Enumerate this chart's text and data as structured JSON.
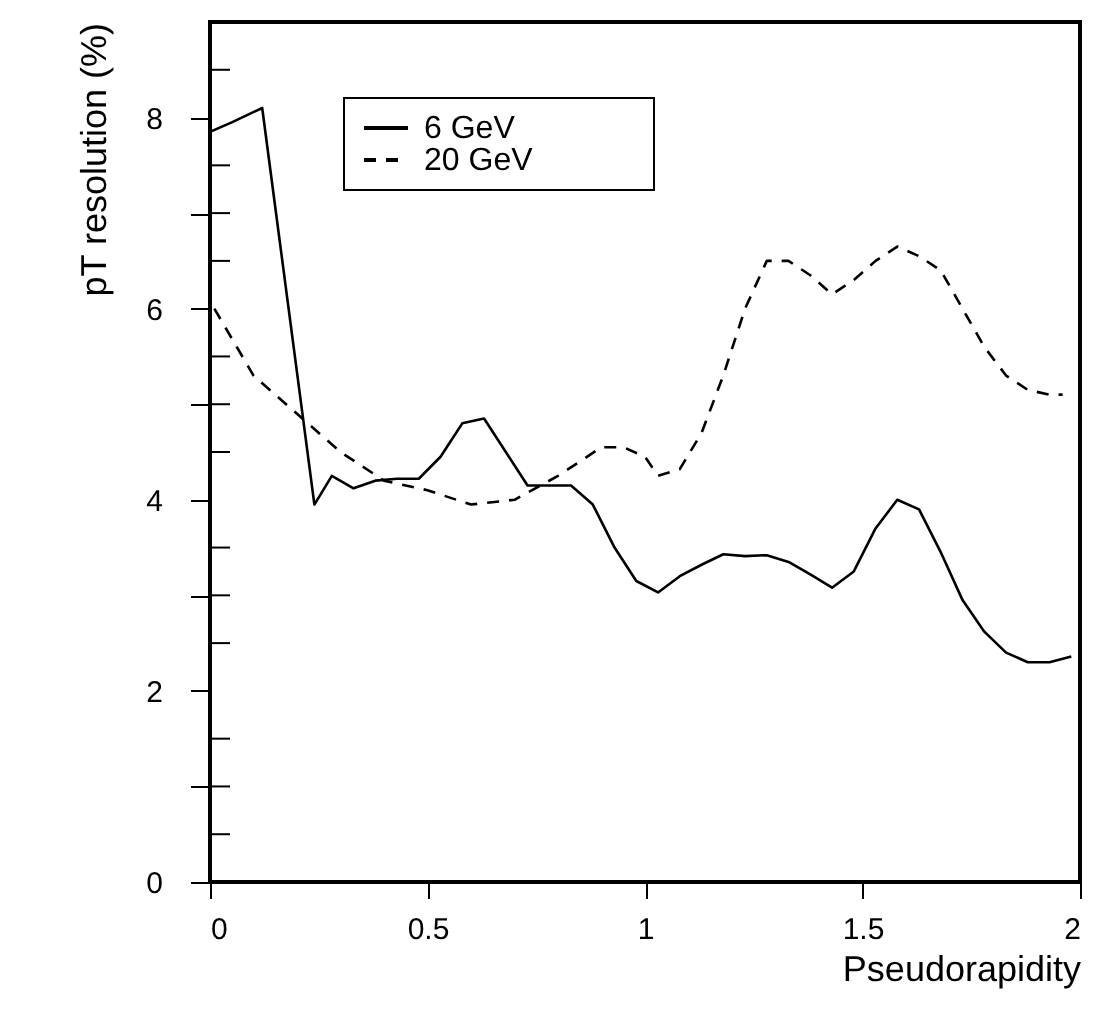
{
  "chart_data": {
    "type": "line",
    "xlabel": "Pseudorapidity",
    "ylabel": "pT resolution (%)",
    "xlim": [
      0,
      2
    ],
    "xticks": [
      0,
      0.5,
      1,
      1.5,
      2
    ],
    "ylim": [
      0,
      9
    ],
    "yticks": [
      0,
      {
        "value": 0.5,
        "label": null
      },
      {
        "value": 1,
        "label": null
      },
      {
        "value": 1.5,
        "label": null
      },
      2,
      {
        "value": 2.5,
        "label": null
      },
      {
        "value": 3,
        "label": null
      },
      {
        "value": 3.5,
        "label": null
      },
      4,
      {
        "value": 4.5,
        "label": null
      },
      {
        "value": 5,
        "label": null
      },
      {
        "value": 5.5,
        "label": null
      },
      6,
      {
        "value": 6.5,
        "label": null
      },
      {
        "value": 7,
        "label": null
      },
      {
        "value": 7.5,
        "label": null
      },
      8,
      {
        "value": 8.5,
        "label": null
      }
    ],
    "grid": false,
    "legend": "top left",
    "marker": "none",
    "series": [
      {
        "name": "6 GeV",
        "color": "#000000",
        "line_style": "solid",
        "x": [
          0,
          0.05,
          0.12,
          0.24,
          0.28,
          0.33,
          0.38,
          0.43,
          0.48,
          0.53,
          0.58,
          0.63,
          0.68,
          0.73,
          0.78,
          0.83,
          0.88,
          0.93,
          0.98,
          1.03,
          1.08,
          1.13,
          1.18,
          1.23,
          1.28,
          1.33,
          1.38,
          1.43,
          1.48,
          1.53,
          1.58,
          1.63,
          1.68,
          1.73,
          1.78,
          1.83,
          1.88,
          1.93,
          1.98
        ],
        "values": [
          7.85,
          7.95,
          8.1,
          3.95,
          4.25,
          4.12,
          4.2,
          4.22,
          4.22,
          4.45,
          4.8,
          4.85,
          4.5,
          4.15,
          4.15,
          4.15,
          3.95,
          3.5,
          3.15,
          3.03,
          3.2,
          3.32,
          3.43,
          3.41,
          3.42,
          3.35,
          3.22,
          3.08,
          3.25,
          3.7,
          4.0,
          3.9,
          3.45,
          2.95,
          2.62,
          2.4,
          2.3,
          2.3,
          2.36
        ]
      },
      {
        "name": "20 GeV",
        "color": "#000000",
        "line_style": "dashed",
        "x": [
          0.01,
          0.1,
          0.2,
          0.3,
          0.4,
          0.5,
          0.6,
          0.7,
          0.8,
          0.9,
          0.95,
          1.0,
          1.03,
          1.08,
          1.13,
          1.18,
          1.23,
          1.28,
          1.33,
          1.38,
          1.43,
          1.48,
          1.53,
          1.58,
          1.63,
          1.68,
          1.73,
          1.78,
          1.83,
          1.88,
          1.93,
          1.96
        ],
        "values": [
          6.0,
          5.3,
          4.9,
          4.5,
          4.2,
          4.1,
          3.95,
          4.0,
          4.25,
          4.55,
          4.55,
          4.45,
          4.25,
          4.32,
          4.7,
          5.3,
          6.0,
          6.5,
          6.5,
          6.35,
          6.15,
          6.3,
          6.5,
          6.65,
          6.55,
          6.4,
          6.0,
          5.6,
          5.3,
          5.15,
          5.1,
          5.1
        ]
      }
    ]
  }
}
